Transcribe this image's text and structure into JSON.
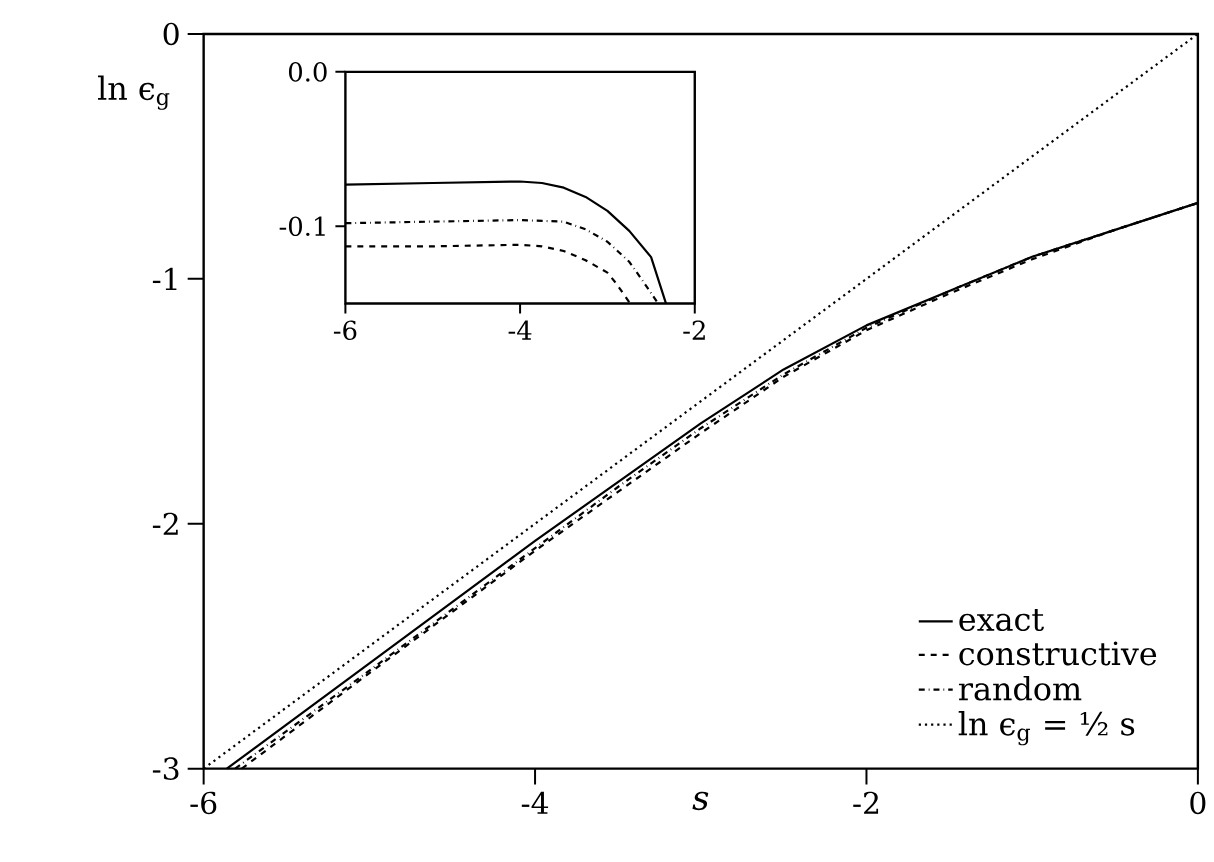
{
  "chart_data": [
    {
      "type": "line",
      "xlabel": "s",
      "ylabel": "ln ϵ$_{g}$",
      "xlim": [
        -6,
        0
      ],
      "ylim": [
        -3,
        0
      ],
      "xticks": [
        -6,
        -4,
        -2,
        0
      ],
      "yticks": [
        -3,
        -2,
        -1,
        0
      ],
      "legend": "bottom right",
      "grid": false,
      "series": [
        {
          "name": "exact",
          "color": "#000000",
          "line_style": "solid",
          "x": [
            -5.86,
            -5,
            -4,
            -3.5,
            -3,
            -2.5,
            -2,
            -1.5,
            -1,
            -0.5,
            0
          ],
          "values": [
            -3,
            -2.57,
            -2.07,
            -1.83,
            -1.59,
            -1.37,
            -1.19,
            -1.05,
            -0.91,
            -0.8,
            -0.69
          ]
        },
        {
          "name": "constructive",
          "color": "#000000",
          "line_style": "dashed",
          "x": [
            -5.77,
            -5,
            -4,
            -3.5,
            -3,
            -2.5,
            -2,
            -1.5,
            -1,
            -0.5,
            0
          ],
          "values": [
            -3,
            -2.61,
            -2.11,
            -1.87,
            -1.63,
            -1.4,
            -1.21,
            -1.06,
            -0.92,
            -0.8,
            -0.69
          ]
        },
        {
          "name": "random",
          "color": "#000000",
          "line_style": "dashdot",
          "x": [
            -5.81,
            -5,
            -4,
            -3.5,
            -3,
            -2.5,
            -2,
            -1.5,
            -1,
            -0.5,
            0
          ],
          "values": [
            -3,
            -2.6,
            -2.1,
            -1.85,
            -1.61,
            -1.39,
            -1.2,
            -1.05,
            -0.91,
            -0.8,
            -0.69
          ]
        },
        {
          "name": "ln ϵ$_{g}$ = ½ s",
          "color": "#000000",
          "line_style": "dotted",
          "x": [
            -6,
            0
          ],
          "values": [
            -3,
            0
          ]
        }
      ]
    },
    {
      "type": "line",
      "xlim": [
        -6,
        -2
      ],
      "ylim": [
        -0.15,
        0
      ],
      "xticks": [
        -6,
        -4,
        -2
      ],
      "yticks": [
        {
          "value": 0,
          "label": "0.0"
        },
        -0.1
      ],
      "legend": false,
      "grid": false,
      "series": [
        {
          "color": "#000000",
          "line_style": "solid",
          "x": [
            -6,
            -5,
            -4,
            -3.75,
            -3.5,
            -3.25,
            -3,
            -2.75,
            -2.5,
            -2.33
          ],
          "values": [
            -0.073,
            -0.072,
            -0.071,
            -0.072,
            -0.075,
            -0.081,
            -0.09,
            -0.103,
            -0.12,
            -0.15
          ]
        },
        {
          "color": "#000000",
          "line_style": "dashed",
          "x": [
            -6,
            -5,
            -4,
            -3.75,
            -3.5,
            -3.25,
            -3,
            -2.9,
            -2.74
          ],
          "values": [
            -0.113,
            -0.113,
            -0.112,
            -0.113,
            -0.116,
            -0.122,
            -0.13,
            -0.137,
            -0.15
          ]
        },
        {
          "color": "#000000",
          "line_style": "dashdot",
          "x": [
            -6,
            -5,
            -4,
            -3.5,
            -3.25,
            -3,
            -2.75,
            -2.6,
            -2.42
          ],
          "values": [
            -0.098,
            -0.097,
            -0.096,
            -0.097,
            -0.102,
            -0.11,
            -0.123,
            -0.135,
            -0.15
          ]
        }
      ]
    }
  ]
}
